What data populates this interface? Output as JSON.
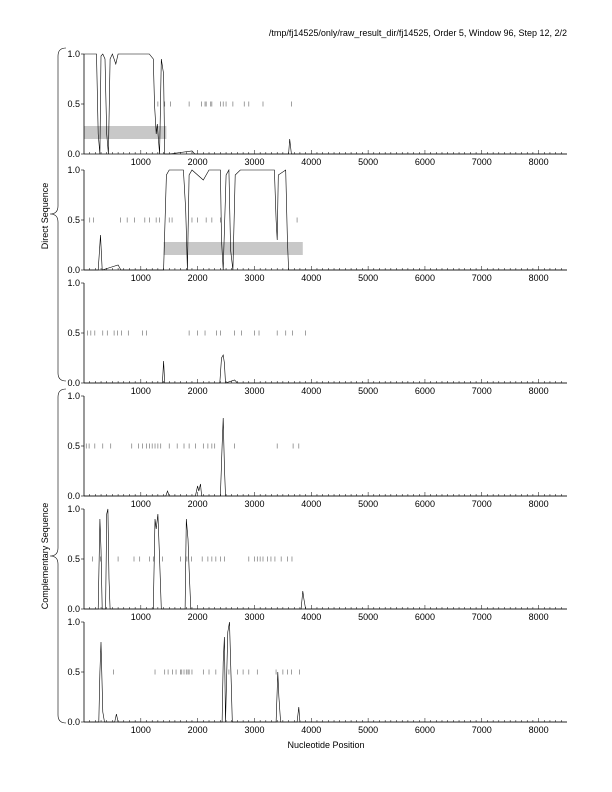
{
  "figure_title": "/tmp/fj14525/only/raw_result_dir/fj14525, Order 5, Window 96, Step 12, 2/2",
  "xlabel": "Nucleotide Position",
  "group_labels": [
    "Direct Sequence",
    "Complementary Sequence"
  ],
  "chart_data": {
    "type": "line",
    "title": "/tmp/fj14525/only/raw_result_dir/fj14525, Order 5, Window 96, Step 12, 2/2",
    "xlabel": "Nucleotide Position",
    "xlim": [
      0,
      8500
    ],
    "ylim": [
      0,
      1
    ],
    "x_ticks": [
      1000,
      2000,
      3000,
      4000,
      5000,
      6000,
      7000,
      8000
    ],
    "y_ticks": [
      0.0,
      0.5,
      1.0
    ],
    "grid": false,
    "panels": [
      {
        "group": "Direct Sequence",
        "curve": [
          [
            0,
            1.0
          ],
          [
            220,
            1.0
          ],
          [
            250,
            0.2
          ],
          [
            280,
            0.0
          ],
          [
            300,
            0.98
          ],
          [
            330,
            1.0
          ],
          [
            370,
            0.95
          ],
          [
            400,
            0.2
          ],
          [
            430,
            0.0
          ],
          [
            460,
            0.95
          ],
          [
            500,
            1.0
          ],
          [
            560,
            0.9
          ],
          [
            600,
            1.0
          ],
          [
            1150,
            1.0
          ],
          [
            1220,
            0.95
          ],
          [
            1240,
            0.5
          ],
          [
            1270,
            0.2
          ],
          [
            1290,
            0.3
          ],
          [
            1310,
            0.15
          ],
          [
            1330,
            0.0
          ],
          [
            1360,
            0.95
          ],
          [
            1400,
            0.8
          ],
          [
            1420,
            0.0
          ],
          [
            1500,
            0.0
          ],
          [
            1900,
            0.03
          ],
          [
            1950,
            0.0
          ],
          [
            3600,
            0.0
          ],
          [
            3620,
            0.15
          ],
          [
            3650,
            0.0
          ],
          [
            8500,
            0.0
          ]
        ],
        "marks": [
          1300,
          1420,
          1520,
          1850,
          2070,
          2130,
          2150,
          2230,
          2250,
          2400,
          2450,
          2500,
          2620,
          2820,
          2900,
          3150,
          3650
        ],
        "region": [
          0,
          1450
        ]
      },
      {
        "group": "Direct Sequence",
        "curve": [
          [
            0,
            0.0
          ],
          [
            250,
            0.0
          ],
          [
            290,
            0.35
          ],
          [
            320,
            0.0
          ],
          [
            600,
            0.05
          ],
          [
            650,
            0.0
          ],
          [
            1400,
            0.0
          ],
          [
            1450,
            0.95
          ],
          [
            1500,
            1.0
          ],
          [
            1750,
            1.0
          ],
          [
            1790,
            0.6
          ],
          [
            1820,
            0.0
          ],
          [
            1850,
            0.95
          ],
          [
            1900,
            1.0
          ],
          [
            2100,
            0.9
          ],
          [
            2200,
            1.0
          ],
          [
            2400,
            1.0
          ],
          [
            2420,
            0.3
          ],
          [
            2450,
            0.0
          ],
          [
            2500,
            0.95
          ],
          [
            2550,
            1.0
          ],
          [
            2580,
            0.2
          ],
          [
            2620,
            0.0
          ],
          [
            2660,
            0.95
          ],
          [
            2750,
            1.0
          ],
          [
            3350,
            1.0
          ],
          [
            3380,
            0.5
          ],
          [
            3400,
            0.3
          ],
          [
            3420,
            0.95
          ],
          [
            3550,
            1.0
          ],
          [
            3580,
            0.3
          ],
          [
            3600,
            0.0
          ],
          [
            8500,
            0.0
          ]
        ],
        "marks": [
          100,
          170,
          640,
          760,
          890,
          1070,
          1150,
          1270,
          1330,
          1500,
          1550,
          1900,
          2000,
          2150,
          2250,
          2400,
          3750
        ],
        "region": [
          1400,
          3850
        ]
      },
      {
        "group": "Direct Sequence",
        "curve": [
          [
            0,
            0.0
          ],
          [
            1380,
            0.0
          ],
          [
            1400,
            0.22
          ],
          [
            1420,
            0.0
          ],
          [
            2390,
            0.0
          ],
          [
            2420,
            0.25
          ],
          [
            2450,
            0.28
          ],
          [
            2470,
            0.2
          ],
          [
            2490,
            0.0
          ],
          [
            2650,
            0.03
          ],
          [
            2700,
            0.0
          ],
          [
            8500,
            0.0
          ]
        ],
        "marks": [
          60,
          120,
          190,
          330,
          410,
          530,
          590,
          660,
          780,
          1030,
          1100,
          1850,
          2000,
          2130,
          2330,
          2400,
          2650,
          2770,
          3000,
          3080,
          3400,
          3550,
          3670,
          3900
        ]
      },
      {
        "group": "Complementary Sequence",
        "curve": [
          [
            0,
            0.0
          ],
          [
            1440,
            0.0
          ],
          [
            1470,
            0.05
          ],
          [
            1500,
            0.0
          ],
          [
            1960,
            0.0
          ],
          [
            2000,
            0.1
          ],
          [
            2020,
            0.05
          ],
          [
            2050,
            0.12
          ],
          [
            2070,
            0.0
          ],
          [
            2400,
            0.0
          ],
          [
            2430,
            0.5
          ],
          [
            2450,
            0.78
          ],
          [
            2470,
            0.3
          ],
          [
            2490,
            0.0
          ],
          [
            8500,
            0.0
          ]
        ],
        "marks": [
          40,
          90,
          190,
          330,
          470,
          840,
          960,
          1030,
          1100,
          1150,
          1200,
          1250,
          1300,
          1350,
          1500,
          1640,
          1760,
          1850,
          1960,
          2100,
          2180,
          2250,
          2300,
          2650,
          3400,
          3680,
          3780
        ]
      },
      {
        "group": "Complementary Sequence",
        "curve": [
          [
            0,
            0.0
          ],
          [
            250,
            0.0
          ],
          [
            280,
            0.9
          ],
          [
            300,
            0.6
          ],
          [
            320,
            0.0
          ],
          [
            380,
            0.0
          ],
          [
            400,
            0.95
          ],
          [
            420,
            1.0
          ],
          [
            440,
            0.3
          ],
          [
            460,
            0.0
          ],
          [
            1220,
            0.0
          ],
          [
            1250,
            0.9
          ],
          [
            1270,
            0.8
          ],
          [
            1300,
            0.95
          ],
          [
            1330,
            0.5
          ],
          [
            1360,
            0.0
          ],
          [
            1780,
            0.0
          ],
          [
            1800,
            0.9
          ],
          [
            1830,
            0.7
          ],
          [
            1850,
            0.4
          ],
          [
            1880,
            0.0
          ],
          [
            3820,
            0.0
          ],
          [
            3850,
            0.18
          ],
          [
            3870,
            0.1
          ],
          [
            3900,
            0.0
          ],
          [
            8500,
            0.0
          ]
        ],
        "marks": [
          150,
          290,
          600,
          880,
          980,
          1150,
          1220,
          1380,
          1700,
          1810,
          1890,
          2080,
          2180,
          2250,
          2320,
          2400,
          2470,
          2900,
          3000,
          3050,
          3100,
          3150,
          3230,
          3290,
          3360,
          3470,
          3580,
          3660
        ]
      },
      {
        "group": "Complementary Sequence",
        "curve": [
          [
            0,
            0.0
          ],
          [
            260,
            0.0
          ],
          [
            280,
            0.5
          ],
          [
            300,
            0.8
          ],
          [
            330,
            0.1
          ],
          [
            360,
            0.0
          ],
          [
            540,
            0.0
          ],
          [
            570,
            0.08
          ],
          [
            600,
            0.0
          ],
          [
            2430,
            0.0
          ],
          [
            2450,
            0.6
          ],
          [
            2470,
            0.85
          ],
          [
            2490,
            0.0
          ],
          [
            2530,
            0.9
          ],
          [
            2560,
            1.0
          ],
          [
            2590,
            0.4
          ],
          [
            2610,
            0.0
          ],
          [
            3380,
            0.0
          ],
          [
            3410,
            0.5
          ],
          [
            3430,
            0.25
          ],
          [
            3460,
            0.0
          ],
          [
            3750,
            0.0
          ],
          [
            3780,
            0.15
          ],
          [
            3800,
            0.0
          ],
          [
            8500,
            0.0
          ]
        ],
        "marks": [
          520,
          1250,
          1420,
          1480,
          1560,
          1620,
          1700,
          1720,
          1760,
          1800,
          1830,
          1850,
          1900,
          2100,
          2200,
          2320,
          2550,
          2700,
          2800,
          2900,
          3050,
          3380,
          3500,
          3580,
          3650,
          3790
        ]
      }
    ]
  }
}
